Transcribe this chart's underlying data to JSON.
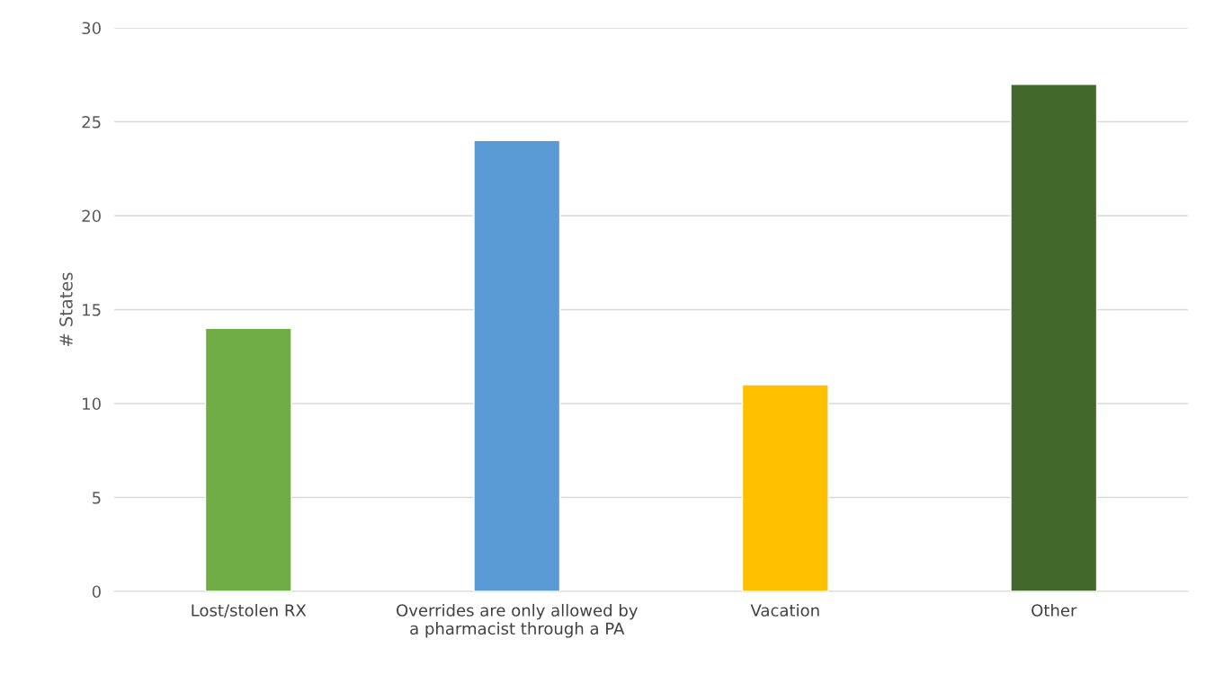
{
  "chart_data": {
    "type": "bar",
    "ylabel": "# States",
    "categories": [
      "Lost/stolen RX",
      "Overrides are only allowed by\na pharmacist through a PA",
      "Vacation",
      "Other"
    ],
    "values": [
      14,
      24,
      11,
      27
    ],
    "colors": [
      "#70ad47",
      "#5b9bd5",
      "#ffc000",
      "#43682b"
    ],
    "ylim": [
      0,
      30
    ],
    "yticks": [
      0,
      5,
      10,
      15,
      20,
      25,
      30
    ],
    "grid": "y",
    "legend": false
  }
}
